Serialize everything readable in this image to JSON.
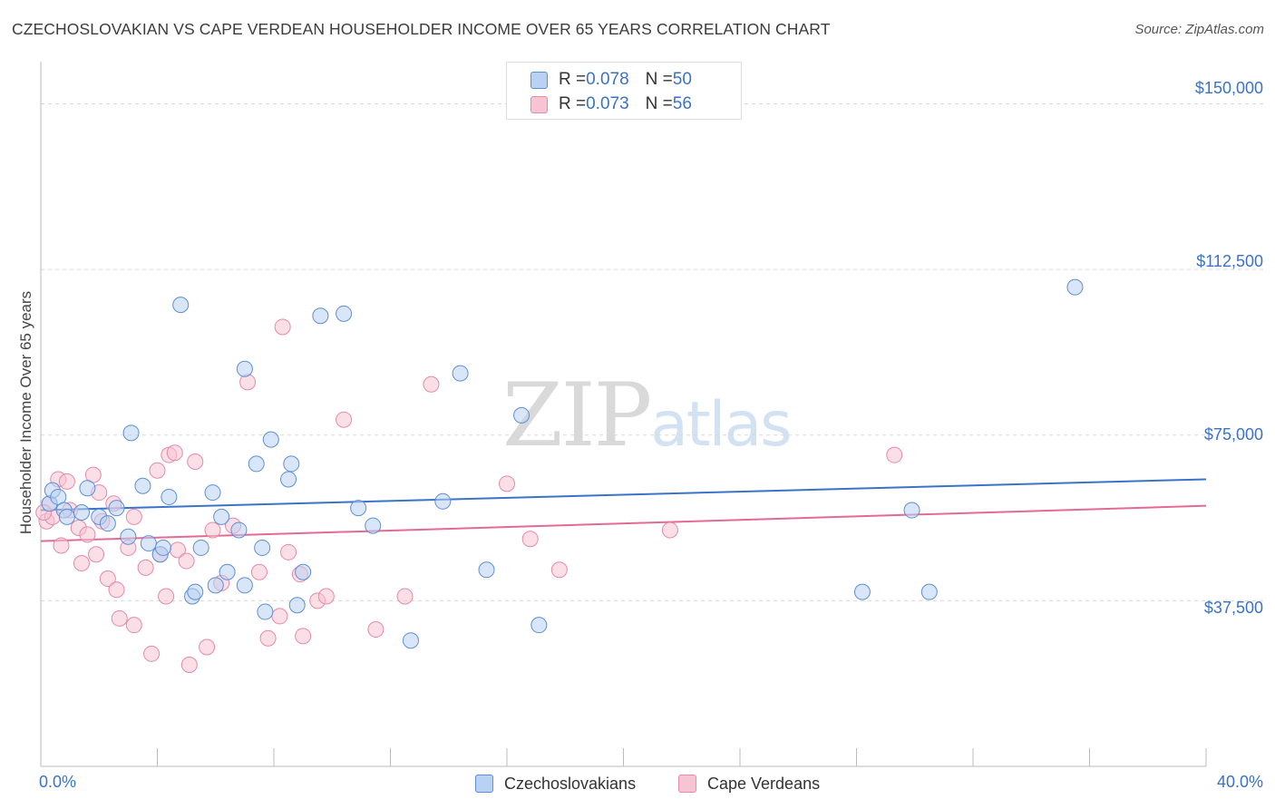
{
  "title": "CZECHOSLOVAKIAN VS CAPE VERDEAN HOUSEHOLDER INCOME OVER 65 YEARS CORRELATION CHART",
  "source": "Source: ZipAtlas.com",
  "watermark": {
    "zip": "ZIP",
    "atlas": "atlas"
  },
  "colors": {
    "blue_fill": "#b9d1f3",
    "blue_stroke": "#5d8fd6",
    "blue_line": "#3a74c9",
    "pink_fill": "#f8c4d4",
    "pink_stroke": "#e68aa9",
    "pink_line": "#e46a93",
    "axis_label": "#3b72c8",
    "grid": "#d8d8d8"
  },
  "legend": [
    {
      "r_label": "R = ",
      "r_value": "0.078",
      "n_label": "N = ",
      "n_value": "50"
    },
    {
      "r_label": "R = ",
      "r_value": "0.073",
      "n_label": "N = ",
      "n_value": "56"
    }
  ],
  "chart_data": {
    "type": "scatter",
    "title": "CZECHOSLOVAKIAN VS CAPE VERDEAN HOUSEHOLDER INCOME OVER 65 YEARS CORRELATION CHART",
    "xlabel": "",
    "ylabel": "Householder Income Over 65 years",
    "xlim": [
      0,
      40
    ],
    "ylim": [
      0,
      157500
    ],
    "x_tick_labels": [
      "0.0%",
      "40.0%"
    ],
    "y_ticks": [
      37500,
      75000,
      112500,
      150000
    ],
    "y_tick_labels": [
      "$37,500",
      "$75,000",
      "$112,500",
      "$150,000"
    ],
    "grid": "horizontal dashed",
    "legend_position": "top-center and bottom",
    "series": [
      {
        "name": "Czechoslovakians",
        "color": "blue",
        "trend": {
          "x": [
            0,
            40
          ],
          "y": [
            58000,
            65000
          ]
        },
        "points": [
          [
            0.3,
            59500
          ],
          [
            0.4,
            62500
          ],
          [
            0.6,
            61000
          ],
          [
            0.8,
            58000
          ],
          [
            0.9,
            56500
          ],
          [
            1.4,
            57500
          ],
          [
            1.6,
            63000
          ],
          [
            2.0,
            56500
          ],
          [
            2.3,
            55000
          ],
          [
            2.6,
            58500
          ],
          [
            3.0,
            52000
          ],
          [
            3.1,
            75500
          ],
          [
            3.5,
            63500
          ],
          [
            3.7,
            50500
          ],
          [
            4.1,
            48000
          ],
          [
            4.2,
            49500
          ],
          [
            4.4,
            61000
          ],
          [
            4.8,
            104500
          ],
          [
            5.2,
            38500
          ],
          [
            5.3,
            39500
          ],
          [
            5.5,
            49500
          ],
          [
            5.9,
            62000
          ],
          [
            6.0,
            41000
          ],
          [
            6.2,
            56500
          ],
          [
            6.4,
            44000
          ],
          [
            6.8,
            53500
          ],
          [
            7.0,
            90000
          ],
          [
            7.0,
            41000
          ],
          [
            7.4,
            68500
          ],
          [
            7.6,
            49500
          ],
          [
            7.7,
            35000
          ],
          [
            7.9,
            74000
          ],
          [
            8.5,
            65000
          ],
          [
            8.6,
            68500
          ],
          [
            8.8,
            36500
          ],
          [
            9.0,
            44000
          ],
          [
            9.6,
            102000
          ],
          [
            10.4,
            102500
          ],
          [
            10.9,
            58500
          ],
          [
            11.4,
            54500
          ],
          [
            12.7,
            28500
          ],
          [
            13.8,
            60000
          ],
          [
            14.4,
            89000
          ],
          [
            15.3,
            44500
          ],
          [
            16.5,
            79500
          ],
          [
            17.1,
            32000
          ],
          [
            28.2,
            39500
          ],
          [
            29.9,
            58000
          ],
          [
            30.5,
            39500
          ],
          [
            35.5,
            108500
          ]
        ]
      },
      {
        "name": "Cape Verdeans",
        "color": "pink",
        "trend": {
          "x": [
            0,
            40
          ],
          "y": [
            51000,
            59000
          ]
        },
        "points": [
          [
            0.2,
            55500
          ],
          [
            0.3,
            59500
          ],
          [
            0.4,
            56500
          ],
          [
            0.6,
            65000
          ],
          [
            0.7,
            50000
          ],
          [
            0.9,
            64500
          ],
          [
            1.0,
            58000
          ],
          [
            1.3,
            54000
          ],
          [
            1.4,
            46000
          ],
          [
            1.6,
            52500
          ],
          [
            1.8,
            66000
          ],
          [
            1.9,
            48000
          ],
          [
            2.0,
            62000
          ],
          [
            2.1,
            55500
          ],
          [
            2.3,
            42500
          ],
          [
            2.5,
            59500
          ],
          [
            2.6,
            40000
          ],
          [
            2.7,
            33500
          ],
          [
            3.0,
            49500
          ],
          [
            3.2,
            32000
          ],
          [
            3.2,
            56500
          ],
          [
            3.6,
            45000
          ],
          [
            3.8,
            25500
          ],
          [
            4.0,
            67000
          ],
          [
            4.1,
            48000
          ],
          [
            4.3,
            38500
          ],
          [
            4.4,
            70500
          ],
          [
            4.6,
            71000
          ],
          [
            4.7,
            49000
          ],
          [
            5.0,
            46500
          ],
          [
            5.1,
            23000
          ],
          [
            5.3,
            69000
          ],
          [
            5.7,
            27000
          ],
          [
            5.9,
            53500
          ],
          [
            6.2,
            41500
          ],
          [
            6.6,
            54500
          ],
          [
            7.1,
            87000
          ],
          [
            7.5,
            44000
          ],
          [
            7.8,
            29000
          ],
          [
            8.2,
            34000
          ],
          [
            8.3,
            99500
          ],
          [
            8.5,
            48500
          ],
          [
            8.9,
            43500
          ],
          [
            9.0,
            29500
          ],
          [
            9.5,
            37500
          ],
          [
            9.8,
            38500
          ],
          [
            10.4,
            78500
          ],
          [
            11.5,
            31000
          ],
          [
            12.5,
            38500
          ],
          [
            13.4,
            86500
          ],
          [
            16.0,
            64000
          ],
          [
            16.8,
            51500
          ],
          [
            17.8,
            44500
          ],
          [
            21.6,
            53500
          ],
          [
            29.3,
            70500
          ],
          [
            0.1,
            57500
          ]
        ]
      }
    ]
  },
  "axes": {
    "x_min_label": "0.0%",
    "x_max_label": "40.0%"
  }
}
